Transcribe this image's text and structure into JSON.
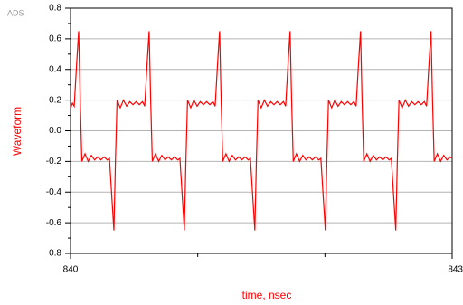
{
  "chart_data": {
    "type": "line",
    "watermark": "ADS",
    "xlabel": "time, nsec",
    "ylabel": "Waveform",
    "xlim": [
      840,
      843
    ],
    "xticks": [
      840,
      843
    ],
    "xminorticks": [
      841,
      842
    ],
    "ylim": [
      -0.8,
      0.8
    ],
    "yticks": [
      -0.8,
      -0.6,
      -0.4,
      -0.2,
      {
        "value": 0,
        "label": "0.0"
      },
      0.2,
      0.4,
      0.6,
      0.8
    ],
    "yminorticks": [
      -0.7,
      -0.5,
      -0.3,
      -0.1,
      0.1,
      0.3,
      0.5,
      0.7
    ],
    "grid": true,
    "x": [
      840.0,
      840.015,
      840.029,
      840.049,
      840.064,
      840.076,
      840.089,
      840.114,
      840.139,
      840.164,
      840.189,
      840.214,
      840.239,
      840.264,
      840.289,
      840.306,
      840.326,
      840.341,
      840.353,
      840.366,
      840.391,
      840.416,
      840.441,
      840.466,
      840.491,
      840.516,
      840.541,
      840.566,
      840.583,
      840.603,
      840.618,
      840.63,
      840.643,
      840.668,
      840.693,
      840.718,
      840.743,
      840.768,
      840.793,
      840.818,
      840.843,
      840.86,
      840.88,
      840.895,
      840.907,
      840.92,
      840.945,
      840.97,
      840.995,
      841.02,
      841.045,
      841.07,
      841.095,
      841.12,
      841.137,
      841.157,
      841.172,
      841.184,
      841.197,
      841.222,
      841.247,
      841.272,
      841.297,
      841.322,
      841.347,
      841.372,
      841.397,
      841.414,
      841.434,
      841.449,
      841.461,
      841.474,
      841.499,
      841.524,
      841.549,
      841.574,
      841.599,
      841.624,
      841.649,
      841.674,
      841.691,
      841.711,
      841.726,
      841.738,
      841.751,
      841.776,
      841.801,
      841.826,
      841.851,
      841.876,
      841.901,
      841.926,
      841.951,
      841.968,
      841.988,
      842.003,
      842.015,
      842.028,
      842.053,
      842.078,
      842.103,
      842.128,
      842.153,
      842.178,
      842.203,
      842.228,
      842.245,
      842.265,
      842.28,
      842.292,
      842.305,
      842.33,
      842.355,
      842.38,
      842.405,
      842.43,
      842.455,
      842.48,
      842.505,
      842.522,
      842.542,
      842.557,
      842.569,
      842.582,
      842.607,
      842.632,
      842.657,
      842.682,
      842.707,
      842.732,
      842.757,
      842.782,
      842.799,
      842.819,
      842.834,
      842.846,
      842.859,
      842.884,
      842.909,
      842.934,
      842.959,
      842.984,
      843.0
    ],
    "series": [
      {
        "name": "Waveform",
        "color": "#ff0000",
        "values": [
          0.15,
          0.18,
          0.16,
          0.45,
          0.65,
          0.2,
          -0.2,
          -0.15,
          -0.2,
          -0.16,
          -0.19,
          -0.17,
          -0.19,
          -0.17,
          -0.19,
          -0.18,
          -0.45,
          -0.65,
          -0.2,
          0.2,
          0.15,
          0.2,
          0.16,
          0.19,
          0.17,
          0.19,
          0.17,
          0.19,
          0.16,
          0.45,
          0.65,
          0.2,
          -0.2,
          -0.15,
          -0.2,
          -0.16,
          -0.19,
          -0.17,
          -0.19,
          -0.17,
          -0.19,
          -0.18,
          -0.45,
          -0.65,
          -0.2,
          0.2,
          0.15,
          0.2,
          0.16,
          0.19,
          0.17,
          0.19,
          0.17,
          0.19,
          0.16,
          0.45,
          0.65,
          0.2,
          -0.2,
          -0.15,
          -0.2,
          -0.16,
          -0.19,
          -0.17,
          -0.19,
          -0.17,
          -0.19,
          -0.18,
          -0.45,
          -0.65,
          -0.2,
          0.2,
          0.15,
          0.2,
          0.16,
          0.19,
          0.17,
          0.19,
          0.17,
          0.19,
          0.16,
          0.45,
          0.65,
          0.2,
          -0.2,
          -0.15,
          -0.2,
          -0.16,
          -0.19,
          -0.17,
          -0.19,
          -0.17,
          -0.19,
          -0.18,
          -0.45,
          -0.65,
          -0.2,
          0.2,
          0.15,
          0.2,
          0.16,
          0.19,
          0.17,
          0.19,
          0.17,
          0.19,
          0.16,
          0.45,
          0.65,
          0.2,
          -0.2,
          -0.15,
          -0.2,
          -0.16,
          -0.19,
          -0.17,
          -0.19,
          -0.17,
          -0.19,
          -0.18,
          -0.45,
          -0.65,
          -0.2,
          0.2,
          0.15,
          0.2,
          0.16,
          0.19,
          0.17,
          0.19,
          0.17,
          0.19,
          0.16,
          0.45,
          0.65,
          0.2,
          -0.2,
          -0.15,
          -0.2,
          -0.16,
          -0.19,
          -0.17,
          -0.18
        ]
      }
    ]
  }
}
